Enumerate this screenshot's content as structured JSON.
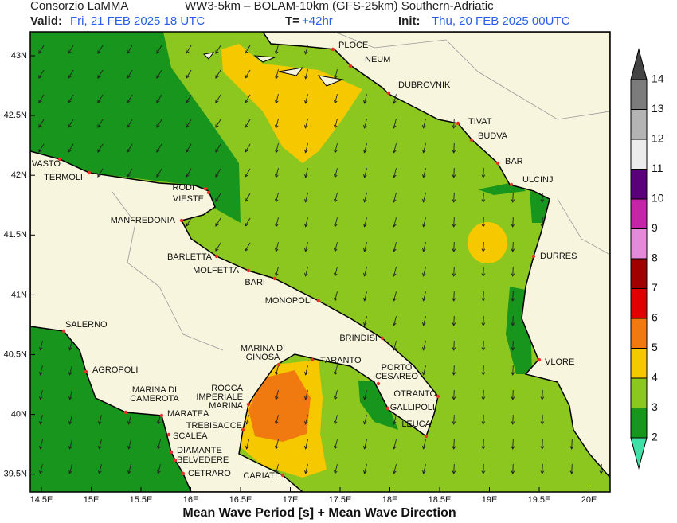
{
  "header": {
    "left": "Consorzio LaMMA",
    "model": "WW3-5km – BOLAM-10km (GFS-25km) Southern-Adriatic",
    "valid_label": "Valid:",
    "valid": "Fri, 21 FEB 2025  18 UTC",
    "t_label": "T=",
    "t": "+42hr",
    "init_label": "Init:",
    "init": "Thu, 20 FEB 2025 00UTC"
  },
  "lat_labels": [
    "43N",
    "42.5N",
    "42N",
    "41.5N",
    "41N",
    "40.5N",
    "40N",
    "39.5N"
  ],
  "lon_labels": [
    "14.5E",
    "15E",
    "15.5E",
    "16E",
    "16.5E",
    "17E",
    "17.5E",
    "18E",
    "18.5E",
    "19E",
    "19.5E",
    "20E"
  ],
  "colorbar": {
    "labels": [
      2,
      3,
      4,
      5,
      6,
      7,
      8,
      9,
      10,
      11,
      12,
      13,
      14
    ],
    "colors": [
      "#3fe0a8",
      "#17951c",
      "#8cc720",
      "#f6c800",
      "#f07a10",
      "#e00000",
      "#a00000",
      "#e48ad8",
      "#c424a8",
      "#5a007a",
      "#ececec",
      "#b4b4b4",
      "#7c7c7c",
      "#444444"
    ]
  },
  "cities": [
    [
      "PLOCE"
    ],
    [
      "NEUM"
    ],
    [
      "DUBROVNIK"
    ],
    [
      "TIVAT"
    ],
    [
      "BUDVA"
    ],
    [
      "BAR"
    ],
    [
      "ULCINJ"
    ],
    [
      "DURRES"
    ],
    [
      "VLORE"
    ],
    [
      "VASTO"
    ],
    [
      "TERMOLI"
    ],
    [
      "RODI"
    ],
    [
      "VIESTE"
    ],
    [
      "MANFREDONIA"
    ],
    [
      "BARLETTA"
    ],
    [
      "MOLFETTA"
    ],
    [
      "BARI"
    ],
    [
      "MONOPOLI"
    ],
    [
      "BRINDISI"
    ],
    [
      "SALERNO"
    ],
    [
      "AGROPOLI"
    ],
    [
      "MARINA DI",
      "CAMEROTA"
    ],
    [
      "MARATEA"
    ],
    [
      "SCALEA"
    ],
    [
      "DIAMANTE"
    ],
    [
      "BELVEDERE"
    ],
    [
      "CETRARO"
    ],
    [
      "TREBISACCE"
    ],
    [
      "ROCCA",
      "IMPERIALE",
      "MARINA"
    ],
    [
      "MARINA DI",
      "GINOSA"
    ],
    [
      "TARANTO"
    ],
    [
      "PORTO",
      "CESAREO"
    ],
    [
      "OTRANTO"
    ],
    [
      "GALLIPOLI"
    ],
    [
      "LEUCA"
    ],
    [
      "CARIATI"
    ]
  ],
  "footer": "Mean Wave Period [s] + Mean Wave Direction"
}
